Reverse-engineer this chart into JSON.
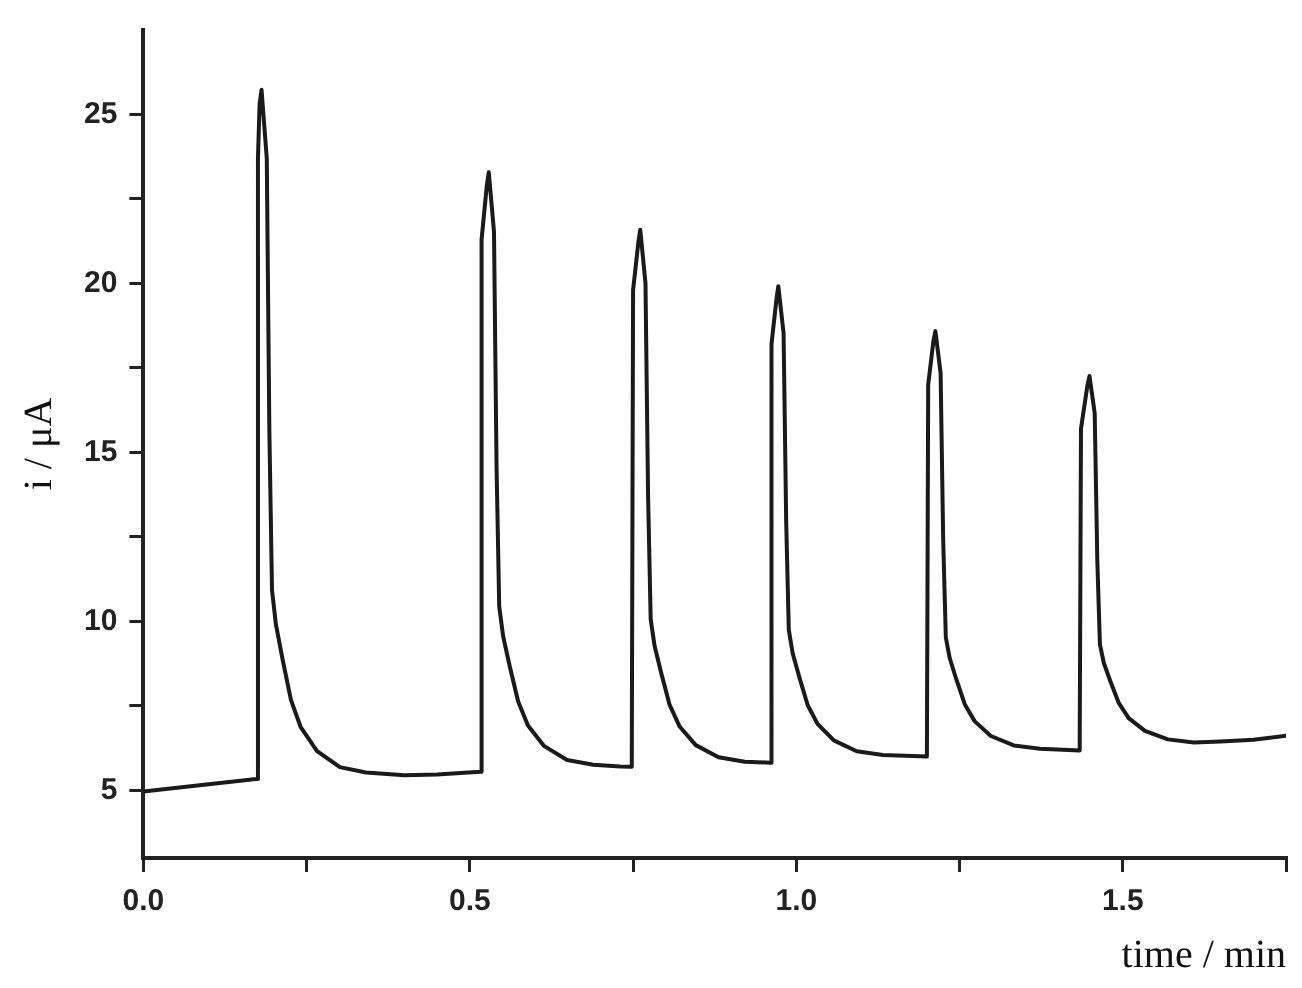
{
  "chart_data": {
    "type": "line",
    "xlabel": "time / min",
    "ylabel": "i / μA",
    "xlim": [
      0,
      1.75
    ],
    "ylim": [
      3,
      27.5
    ],
    "xticks": [
      {
        "value": 0,
        "label": "0.0"
      },
      {
        "value": 0.25,
        "label": null
      },
      {
        "value": 0.5,
        "label": "0.5"
      },
      {
        "value": 0.75,
        "label": null
      },
      {
        "value": 1,
        "label": "1.0"
      },
      {
        "value": 1.25,
        "label": null
      },
      {
        "value": 1.5,
        "label": "1.5"
      },
      {
        "value": 1.75,
        "label": null
      }
    ],
    "yticks": [
      5,
      {
        "value": 7.5,
        "label": null
      },
      10,
      {
        "value": 12.5,
        "label": null
      },
      15,
      {
        "value": 17.5,
        "label": null
      },
      20,
      {
        "value": 22.5,
        "label": null
      },
      25
    ],
    "grid": false,
    "legend": false,
    "marker": "none",
    "line_style": "solid",
    "series": [
      {
        "color": "#1a1a1a",
        "x": [
          0,
          0.1,
          0.1735,
          0.1755,
          0.178,
          0.181,
          0.189,
          0.193,
          0.197,
          0.203,
          0.213,
          0.226,
          0.241,
          0.266,
          0.301,
          0.341,
          0.4,
          0.45,
          0.516,
          0.518,
          0.526,
          0.529,
          0.537,
          0.541,
          0.545,
          0.551,
          0.561,
          0.574,
          0.589,
          0.614,
          0.649,
          0.689,
          0.73,
          0.748,
          0.75,
          0.758,
          0.761,
          0.769,
          0.773,
          0.777,
          0.783,
          0.793,
          0.806,
          0.821,
          0.846,
          0.881,
          0.921,
          0.96,
          0.962,
          0.97,
          0.9725,
          0.9805,
          0.9845,
          0.9885,
          0.9945,
          1.0045,
          1.0175,
          1.0325,
          1.0575,
          1.0925,
          1.1325,
          1.2,
          1.202,
          1.21,
          1.213,
          1.221,
          1.225,
          1.229,
          1.235,
          1.245,
          1.258,
          1.273,
          1.298,
          1.333,
          1.373,
          1.434,
          1.436,
          1.446,
          1.449,
          1.457,
          1.461,
          1.465,
          1.471,
          1.481,
          1.494,
          1.509,
          1.534,
          1.569,
          1.609,
          1.65,
          1.7,
          1.75
        ],
        "values": [
          4.97,
          5.18,
          5.34,
          23.7,
          25.3,
          25.73,
          23.7,
          15.59,
          10.93,
          9.91,
          8.9,
          7.68,
          6.87,
          6.16,
          5.69,
          5.53,
          5.45,
          5.47,
          5.55,
          21.3,
          22.9,
          23.29,
          21.53,
          14.49,
          10.44,
          9.56,
          8.68,
          7.63,
          6.92,
          6.31,
          5.9,
          5.76,
          5.71,
          5.7,
          19.8,
          21.2,
          21.59,
          20.01,
          13.69,
          10.06,
          9.27,
          8.48,
          7.53,
          6.9,
          6.34,
          5.98,
          5.85,
          5.82,
          18.2,
          19.6,
          19.92,
          18.53,
          12.96,
          9.75,
          9.05,
          8.36,
          7.52,
          6.97,
          6.48,
          6.16,
          6.05,
          6,
          17,
          18.3,
          18.59,
          17.35,
          12.38,
          9.53,
          8.91,
          8.29,
          7.55,
          7.05,
          6.61,
          6.33,
          6.23,
          6.18,
          15.7,
          17,
          17.26,
          16.17,
          11.82,
          9.32,
          8.77,
          8.23,
          7.58,
          7.14,
          6.76,
          6.51,
          6.42,
          6.45,
          6.5,
          6.62
        ]
      }
    ]
  }
}
